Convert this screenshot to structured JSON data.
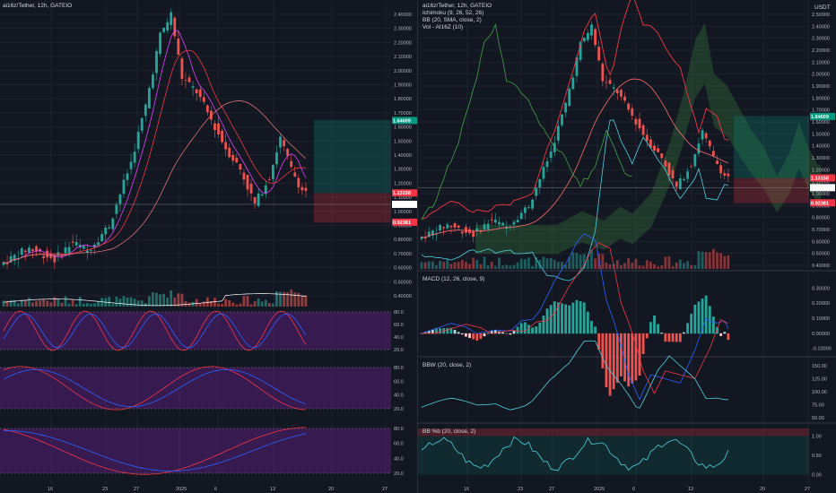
{
  "left": {
    "title": "ai16z/Tether, 12h, GATEIO",
    "price_ticks": [
      "2.40000",
      "2.30000",
      "2.20000",
      "2.10000",
      "2.00000",
      "1.90000",
      "1.80000",
      "1.70000",
      "1.60000",
      "1.50000",
      "1.40000",
      "1.30000",
      "1.20000",
      "1.10000",
      "1.00000",
      "0.90000",
      "0.80000",
      "0.70000",
      "0.60000",
      "0.50000",
      "0.40000"
    ],
    "price_labels": {
      "green": "1.64609",
      "current": "1.13158",
      "current_sub": "12:10:46",
      "white": "1.05000",
      "small": "0.99989",
      "red": "0.92381"
    },
    "osc1_ticks": [
      "80.0",
      "60.0",
      "40.0",
      "20.0"
    ],
    "osc2_ticks": [
      "80.0",
      "60.0",
      "40.0",
      "20.0"
    ],
    "osc3_ticks": [
      "80.0",
      "60.0",
      "40.0",
      "20.0"
    ],
    "time_ticks": [
      "16",
      "23",
      "27",
      "2025",
      "6",
      "13",
      "20",
      "27"
    ]
  },
  "right": {
    "title": "ai16z/Tether, 12h, GATEIO",
    "legend": [
      "Ichimoku (9, 26, 52, 26)",
      "BB (20, SMA, close, 2)",
      "Vol - AI16Z (10)"
    ],
    "currency": "USDT",
    "price_ticks": [
      "2.50000",
      "2.40000",
      "2.30000",
      "2.20000",
      "2.10000",
      "2.00000",
      "1.90000",
      "1.80000",
      "1.70000",
      "1.60000",
      "1.50000",
      "1.40000",
      "1.30000",
      "1.20000",
      "1.10000",
      "1.00000",
      "0.90000",
      "0.80000",
      "0.70000",
      "0.60000",
      "0.50000",
      "0.40000"
    ],
    "price_labels": {
      "green": "1.64609",
      "current": "1.13158",
      "current_sub": "12:10:46",
      "white": "1.05000",
      "small": "0.99989",
      "red": "0.92381"
    },
    "macd_title": "MACD (12, 26, close, 9)",
    "macd_ticks": [
      "0.30000",
      "0.20000",
      "0.10000",
      "0.00000",
      "-0.10000"
    ],
    "bbw_title": "BBW (20, close, 2)",
    "bbw_ticks": [
      "150.00",
      "125.00",
      "100.00",
      "75.00",
      "50.00"
    ],
    "bbp_title": "BB %b (20, close, 2)",
    "bbp_ticks": [
      "1.00",
      "0.50",
      "0.00"
    ],
    "time_ticks": [
      "16",
      "23",
      "27",
      "2025",
      "6",
      "13",
      "20",
      "27"
    ]
  },
  "colors": {
    "bg": "#131722",
    "grid": "#2a2e39",
    "up": "#26a69a",
    "down": "#ef5350",
    "purple": "#7b1fa2",
    "red": "#f23645",
    "green": "#089981"
  }
}
